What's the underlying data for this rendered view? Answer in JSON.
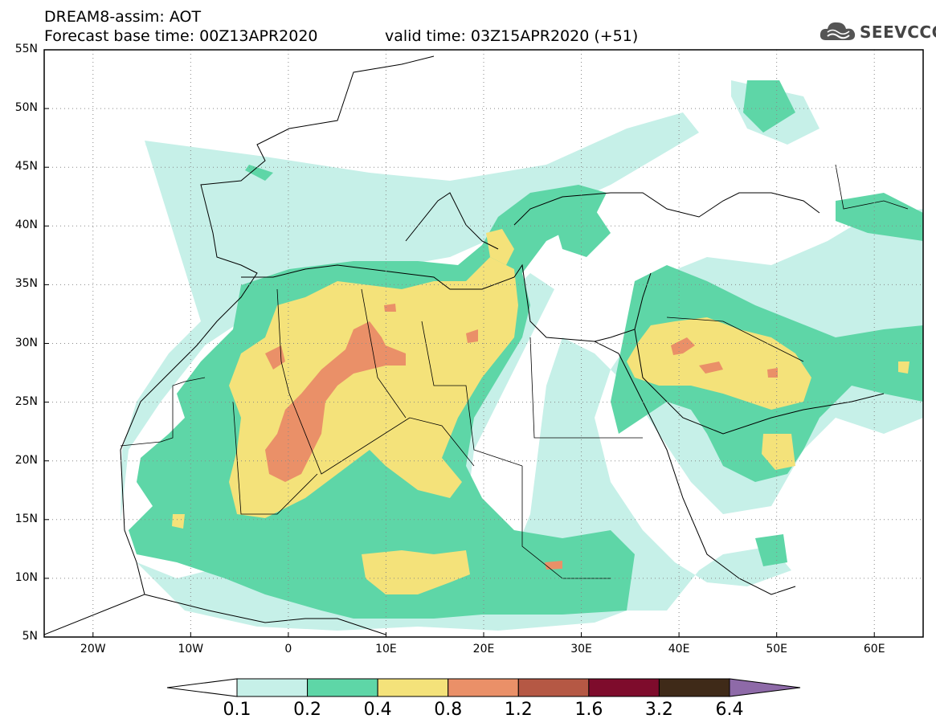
{
  "header": {
    "line1": "DREAM8-assim: AOT",
    "base_time": "Forecast base time: 00Z13APR2020",
    "valid_time": "valid time: 03Z15APR2020 (+51)"
  },
  "logo": {
    "text": "SEEVCCC",
    "icon": "cloud-icon"
  },
  "axes": {
    "lon_range": [
      -25,
      65
    ],
    "lat_range": [
      5,
      55
    ],
    "lat_ticks": [
      {
        "value": 55,
        "label": "55N"
      },
      {
        "value": 50,
        "label": "50N"
      },
      {
        "value": 45,
        "label": "45N"
      },
      {
        "value": 40,
        "label": "40N"
      },
      {
        "value": 35,
        "label": "35N"
      },
      {
        "value": 30,
        "label": "30N"
      },
      {
        "value": 25,
        "label": "25N"
      },
      {
        "value": 20,
        "label": "20N"
      },
      {
        "value": 15,
        "label": "15N"
      },
      {
        "value": 10,
        "label": "10N"
      },
      {
        "value": 5,
        "label": "5N"
      }
    ],
    "lon_ticks": [
      {
        "value": -20,
        "label": "20W"
      },
      {
        "value": -10,
        "label": "10W"
      },
      {
        "value": 0,
        "label": "0"
      },
      {
        "value": 10,
        "label": "10E"
      },
      {
        "value": 20,
        "label": "20E"
      },
      {
        "value": 30,
        "label": "30E"
      },
      {
        "value": 40,
        "label": "40E"
      },
      {
        "value": 50,
        "label": "50E"
      },
      {
        "value": 60,
        "label": "60E"
      }
    ],
    "grid": "dotted"
  },
  "colorbar": {
    "ticks": [
      "0.1",
      "0.2",
      "0.4",
      "0.8",
      "1.2",
      "1.6",
      "3.2",
      "6.4"
    ],
    "colors": [
      "#ffffff",
      "#c6f0e8",
      "#5ed6a7",
      "#f4e27a",
      "#ea9068",
      "#b55844",
      "#7e0c2c",
      "#3f2a18",
      "#8e6aa8"
    ]
  },
  "land_color": "#ffffff",
  "border_color": "#000000"
}
